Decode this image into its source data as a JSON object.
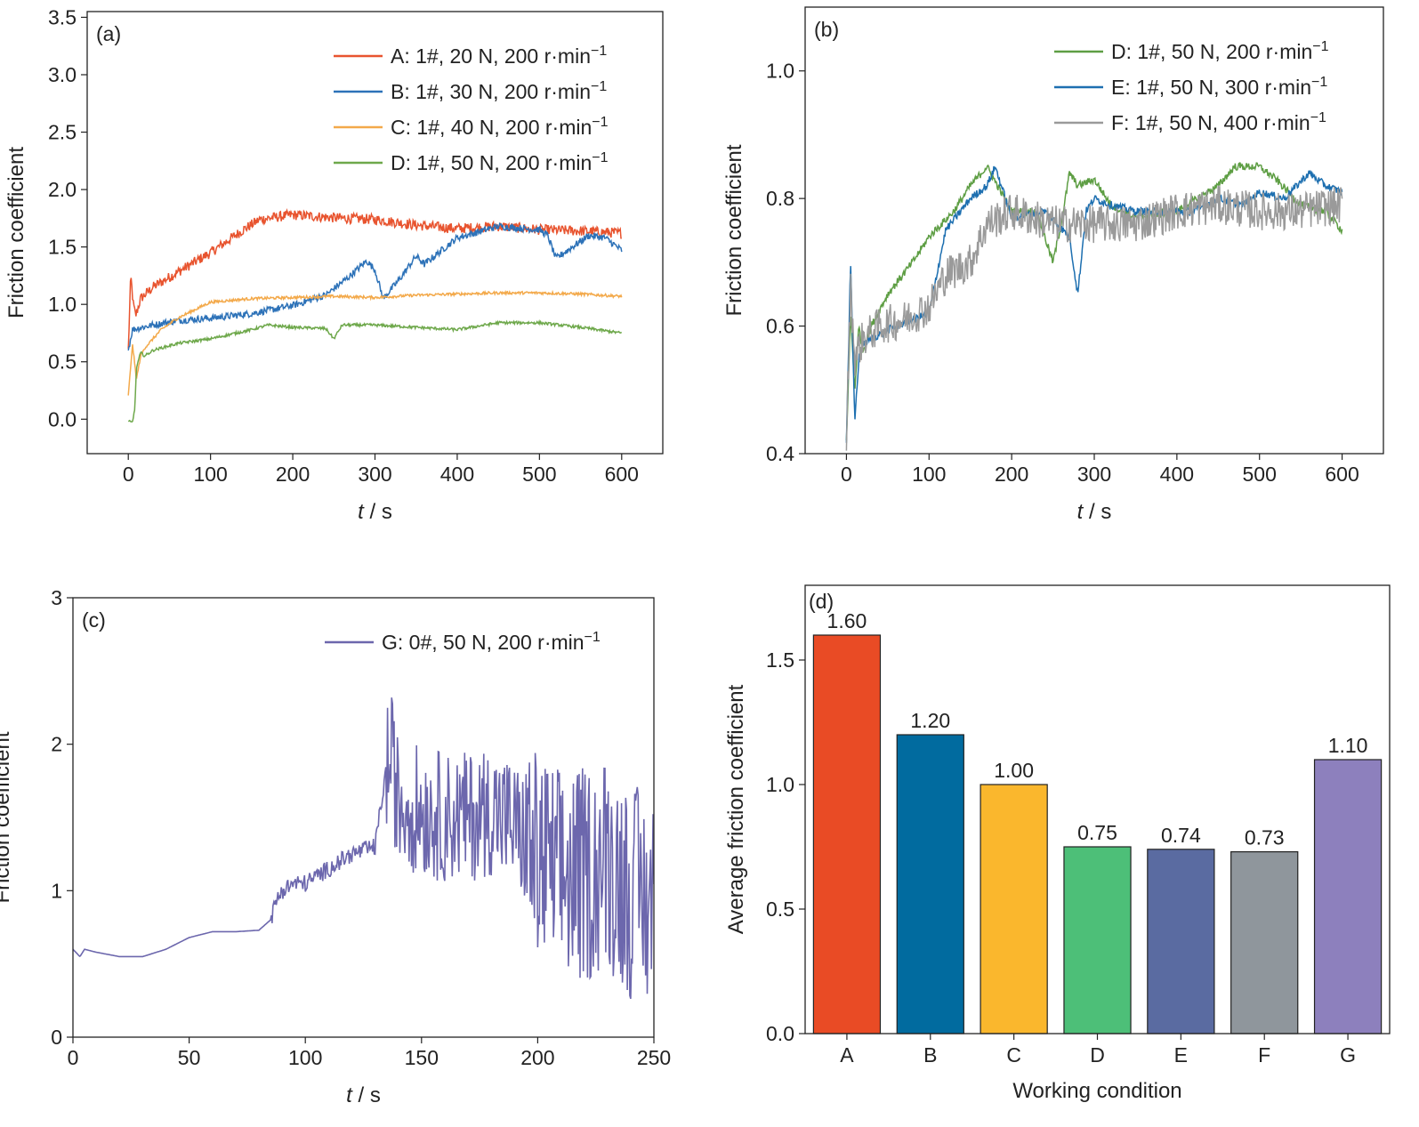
{
  "chart_data": [
    {
      "panel": "(a)",
      "type": "line",
      "xlabel_italic": "t",
      "xlabel_rest": " / s",
      "ylabel": "Friction coefficient",
      "xlim": [
        -50,
        650
      ],
      "ylim": [
        -0.3,
        3.55
      ],
      "xticks": [
        0,
        100,
        200,
        300,
        400,
        500,
        600
      ],
      "yticks": [
        0.0,
        0.5,
        1.0,
        1.5,
        2.0,
        2.5,
        3.0,
        3.5
      ],
      "ytick_format": 1,
      "legend_position": "top-right",
      "series": [
        {
          "name": "A: 1#, 20 N, 200 r·min",
          "sup": "−1",
          "color": "#e8542f",
          "x": [
            0,
            3,
            6,
            9,
            15,
            30,
            60,
            100,
            140,
            160,
            200,
            260,
            300,
            350,
            400,
            450,
            500,
            550,
            600
          ],
          "y": [
            0.6,
            1.25,
            1.0,
            0.9,
            1.05,
            1.15,
            1.28,
            1.45,
            1.65,
            1.74,
            1.78,
            1.75,
            1.74,
            1.69,
            1.66,
            1.68,
            1.65,
            1.64,
            1.62
          ],
          "noise": 0.045
        },
        {
          "name": "B: 1#, 30 N, 200 r·min",
          "sup": "−1",
          "color": "#2d72b8",
          "x": [
            0,
            5,
            10,
            30,
            60,
            100,
            150,
            200,
            240,
            270,
            290,
            300,
            310,
            330,
            350,
            360,
            400,
            450,
            480,
            500,
            510,
            520,
            560,
            580,
            600
          ],
          "y": [
            0.6,
            0.78,
            0.79,
            0.82,
            0.86,
            0.88,
            0.92,
            0.99,
            1.08,
            1.25,
            1.38,
            1.3,
            1.05,
            1.22,
            1.42,
            1.35,
            1.58,
            1.68,
            1.66,
            1.65,
            1.6,
            1.4,
            1.6,
            1.58,
            1.47
          ],
          "noise": 0.03
        },
        {
          "name": "C: 1#, 40 N, 200 r·min",
          "sup": "−1",
          "color": "#f3a94a",
          "x": [
            0,
            5,
            10,
            15,
            20,
            40,
            60,
            80,
            100,
            150,
            200,
            250,
            300,
            350,
            400,
            450,
            500,
            550,
            600
          ],
          "y": [
            0.2,
            0.65,
            0.35,
            0.55,
            0.62,
            0.78,
            0.88,
            0.95,
            1.02,
            1.05,
            1.06,
            1.07,
            1.06,
            1.08,
            1.09,
            1.1,
            1.1,
            1.09,
            1.07
          ],
          "noise": 0.012
        },
        {
          "name": "D: 1#, 50 N, 200 r·min",
          "sup": "−1",
          "color": "#6ea84b",
          "x": [
            0,
            5,
            8,
            10,
            15,
            20,
            30,
            60,
            100,
            150,
            170,
            200,
            240,
            250,
            260,
            300,
            350,
            400,
            450,
            500,
            550,
            600
          ],
          "y": [
            -0.02,
            -0.03,
            0.1,
            0.45,
            0.58,
            0.55,
            0.6,
            0.66,
            0.7,
            0.78,
            0.82,
            0.8,
            0.79,
            0.7,
            0.82,
            0.82,
            0.8,
            0.78,
            0.84,
            0.84,
            0.8,
            0.75
          ],
          "noise": 0.012
        }
      ]
    },
    {
      "panel": "(b)",
      "type": "line",
      "xlabel_italic": "t",
      "xlabel_rest": " / s",
      "ylabel": "Friction coefficient",
      "xlim": [
        -50,
        650
      ],
      "ylim": [
        0.4,
        1.1
      ],
      "xticks": [
        0,
        100,
        200,
        300,
        400,
        500,
        600
      ],
      "yticks": [
        0.4,
        0.6,
        0.8,
        1.0
      ],
      "ytick_format": 1,
      "legend_position": "top-right",
      "series": [
        {
          "name": "D: 1#, 50 N, 200 r·min",
          "sup": "−1",
          "color": "#5e9e44",
          "x": [
            0,
            5,
            10,
            15,
            20,
            30,
            50,
            80,
            100,
            130,
            150,
            170,
            200,
            230,
            250,
            260,
            270,
            280,
            300,
            320,
            350,
            400,
            450,
            470,
            500,
            520,
            550,
            580,
            600
          ],
          "y": [
            0.42,
            0.62,
            0.5,
            0.6,
            0.56,
            0.6,
            0.65,
            0.7,
            0.74,
            0.78,
            0.82,
            0.85,
            0.78,
            0.78,
            0.7,
            0.76,
            0.84,
            0.82,
            0.83,
            0.79,
            0.77,
            0.78,
            0.82,
            0.85,
            0.85,
            0.83,
            0.79,
            0.78,
            0.75
          ],
          "noise": 0.006
        },
        {
          "name": "E: 1#, 50 N, 300 r·min",
          "sup": "−1",
          "color": "#1d6fb0",
          "x": [
            0,
            5,
            10,
            15,
            20,
            30,
            60,
            100,
            120,
            150,
            170,
            180,
            200,
            240,
            270,
            280,
            290,
            300,
            320,
            350,
            380,
            420,
            450,
            480,
            500,
            530,
            560,
            580,
            600
          ],
          "y": [
            0.42,
            0.7,
            0.45,
            0.55,
            0.57,
            0.58,
            0.6,
            0.62,
            0.75,
            0.8,
            0.82,
            0.85,
            0.77,
            0.78,
            0.74,
            0.65,
            0.78,
            0.8,
            0.79,
            0.78,
            0.78,
            0.78,
            0.8,
            0.79,
            0.81,
            0.8,
            0.84,
            0.82,
            0.81
          ],
          "noise": 0.006
        },
        {
          "name": "F: 1#, 50 N, 400 r·min",
          "sup": "−1",
          "color": "#9a9a9a",
          "x": [
            0,
            5,
            10,
            20,
            40,
            70,
            100,
            120,
            150,
            170,
            200,
            250,
            300,
            350,
            400,
            450,
            500,
            550,
            600
          ],
          "y": [
            0.42,
            0.66,
            0.55,
            0.58,
            0.6,
            0.61,
            0.63,
            0.68,
            0.7,
            0.76,
            0.78,
            0.76,
            0.76,
            0.76,
            0.78,
            0.79,
            0.78,
            0.78,
            0.79
          ],
          "noise": 0.03
        }
      ]
    },
    {
      "panel": "(c)",
      "type": "line",
      "xlabel_italic": "t",
      "xlabel_rest": " / s",
      "ylabel": "Friction coefficient",
      "xlim": [
        0,
        250
      ],
      "ylim": [
        0,
        3
      ],
      "xticks": [
        0,
        50,
        100,
        150,
        200,
        250
      ],
      "yticks": [
        0,
        1,
        2,
        3
      ],
      "ytick_format": 0,
      "legend_position": "top-right",
      "series": [
        {
          "name": "G: 0#, 50 N, 200 r·min",
          "sup": "−1",
          "color": "#6c67ad",
          "x": [
            0,
            3,
            5,
            10,
            20,
            30,
            40,
            50,
            60,
            70,
            80,
            85,
            88,
            90,
            95,
            100,
            110,
            120,
            130,
            135,
            137,
            140,
            150,
            160,
            170,
            180,
            190,
            200,
            210,
            220,
            230,
            240,
            250
          ],
          "y": [
            0.6,
            0.55,
            0.6,
            0.58,
            0.55,
            0.55,
            0.6,
            0.68,
            0.72,
            0.72,
            0.73,
            0.8,
            0.95,
            1.0,
            1.05,
            1.05,
            1.15,
            1.25,
            1.3,
            1.85,
            1.9,
            1.6,
            1.55,
            1.5,
            1.5,
            1.55,
            1.45,
            1.2,
            1.1,
            1.1,
            1.2,
            1.0,
            0.9
          ],
          "noise": 0.0
        }
      ]
    },
    {
      "panel": "(d)",
      "type": "bar",
      "xlabel": "Working condition",
      "ylabel": "Average friction coefficient",
      "ylim": [
        0,
        1.8
      ],
      "yticks": [
        0.0,
        0.5,
        1.0,
        1.5
      ],
      "categories": [
        "A",
        "B",
        "C",
        "D",
        "E",
        "F",
        "G"
      ],
      "values": [
        1.6,
        1.2,
        1.0,
        0.75,
        0.74,
        0.73,
        1.1
      ],
      "value_labels": [
        "1.60",
        "1.20",
        "1.00",
        "0.75",
        "0.74",
        "0.73",
        "1.10"
      ],
      "colors": [
        "#e94b25",
        "#016b9f",
        "#fab72d",
        "#4dbf78",
        "#5a6ba1",
        "#8f969c",
        "#8d80bd"
      ]
    }
  ]
}
